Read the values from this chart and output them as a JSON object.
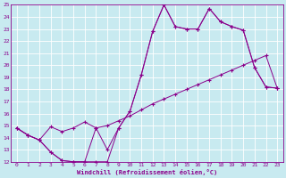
{
  "xlabel": "Windchill (Refroidissement éolien,°C)",
  "bg_color": "#c8eaf0",
  "grid_color": "#ffffff",
  "line_color": "#8b008b",
  "xlim": [
    -0.5,
    23.5
  ],
  "ylim": [
    12,
    25
  ],
  "xticks": [
    0,
    1,
    2,
    3,
    4,
    5,
    6,
    7,
    8,
    9,
    10,
    11,
    12,
    13,
    14,
    15,
    16,
    17,
    18,
    19,
    20,
    21,
    22,
    23
  ],
  "yticks": [
    12,
    13,
    14,
    15,
    16,
    17,
    18,
    19,
    20,
    21,
    22,
    23,
    24,
    25
  ],
  "line1_x": [
    0,
    1,
    2,
    3,
    4,
    5,
    6,
    7,
    8,
    9,
    10,
    11,
    12,
    13,
    14,
    15,
    16,
    17,
    18,
    19,
    20,
    21,
    22,
    23
  ],
  "line1_y": [
    14.8,
    14.2,
    13.8,
    12.8,
    12.1,
    12.0,
    12.0,
    12.0,
    12.0,
    14.8,
    16.2,
    19.2,
    22.8,
    25.0,
    23.2,
    23.0,
    23.0,
    24.7,
    23.6,
    23.2,
    22.9,
    19.8,
    18.2,
    18.1
  ],
  "line2_x": [
    0,
    1,
    2,
    3,
    4,
    5,
    6,
    7,
    8,
    9,
    10,
    11,
    12,
    13,
    14,
    15,
    16,
    17,
    18,
    19,
    20,
    21,
    22,
    23
  ],
  "line2_y": [
    14.8,
    14.2,
    13.8,
    14.9,
    14.5,
    14.8,
    15.3,
    14.8,
    15.0,
    15.4,
    15.8,
    16.3,
    16.8,
    17.2,
    17.6,
    18.0,
    18.4,
    18.8,
    19.2,
    19.6,
    20.0,
    20.4,
    20.8,
    18.1
  ],
  "line3_x": [
    0,
    1,
    2,
    3,
    4,
    5,
    6,
    7,
    8,
    9,
    10,
    11,
    12,
    13,
    14,
    15,
    16,
    17,
    18,
    19,
    20,
    21,
    22,
    23
  ],
  "line3_y": [
    14.8,
    14.2,
    13.8,
    12.8,
    12.1,
    12.0,
    12.0,
    14.8,
    13.0,
    14.8,
    16.2,
    19.2,
    22.8,
    25.0,
    23.2,
    23.0,
    23.0,
    24.7,
    23.6,
    23.2,
    22.9,
    19.8,
    18.2,
    18.1
  ]
}
